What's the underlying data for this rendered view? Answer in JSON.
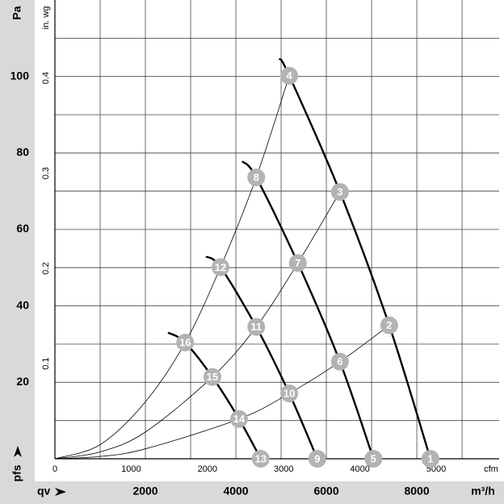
{
  "chart_data": {
    "type": "fan-performance",
    "x_label": "m³/h",
    "x2_label": "cfm",
    "y_label": "Pa",
    "y2_label": "in. wg",
    "x_symbol": "qv",
    "y_symbol": "pfs",
    "xlim": [
      0,
      9820
    ],
    "xticks": [
      2000,
      4000,
      6000,
      8000
    ],
    "x_grid": [
      1000,
      2000,
      3000,
      4000,
      5000,
      6000,
      7000,
      8000,
      9000
    ],
    "x2lim": [
      0,
      5826
    ],
    "x2ticks": [
      0,
      1000,
      2000,
      3000,
      4000,
      5000
    ],
    "ylim": [
      0,
      120
    ],
    "yticks": [
      20,
      40,
      60,
      80,
      100
    ],
    "y_grid": [
      10,
      20,
      30,
      40,
      50,
      60,
      70,
      80,
      90,
      100,
      110
    ],
    "y2lim": [
      0,
      0.482
    ],
    "y2ticks": [
      0.1,
      0.2,
      0.3,
      0.4
    ],
    "grid": true,
    "fan_curves": [
      {
        "x": [
          4960,
          5180,
          6300,
          7390,
          8300
        ],
        "y": [
          104.7,
          100.2,
          69.8,
          34.9,
          0
        ]
      },
      {
        "x": [
          4140,
          4450,
          5370,
          6300,
          7040
        ],
        "y": [
          77.8,
          73.6,
          51.2,
          25.4,
          0
        ]
      },
      {
        "x": [
          3340,
          3660,
          4450,
          5180,
          5800
        ],
        "y": [
          52.9,
          50.1,
          34.5,
          17.1,
          0
        ]
      },
      {
        "x": [
          2500,
          2880,
          3480,
          4070,
          4550
        ],
        "y": [
          33,
          30.4,
          21.4,
          10.4,
          0
        ]
      }
    ],
    "system_curves": [
      {
        "x": [
          0,
          1000,
          2000,
          2880,
          3660,
          4450,
          5180
        ],
        "y": [
          0,
          3.7,
          14.9,
          30.4,
          50.1,
          73.6,
          100.2
        ]
      },
      {
        "x": [
          0,
          1000,
          2000,
          3480,
          4450,
          5370,
          6300
        ],
        "y": [
          0,
          1.8,
          7.0,
          21.4,
          34.5,
          51.2,
          69.8
        ]
      },
      {
        "x": [
          0,
          1000,
          2000,
          4070,
          5180,
          6300,
          7390
        ],
        "y": [
          0,
          0.6,
          2.6,
          10.4,
          17.1,
          25.4,
          34.9
        ]
      }
    ],
    "points": [
      {
        "label": "1",
        "x": 8300,
        "y": 0
      },
      {
        "label": "2",
        "x": 7390,
        "y": 34.9
      },
      {
        "label": "3",
        "x": 6300,
        "y": 69.8
      },
      {
        "label": "4",
        "x": 5180,
        "y": 100.2
      },
      {
        "label": "5",
        "x": 7040,
        "y": 0
      },
      {
        "label": "6",
        "x": 6300,
        "y": 25.4
      },
      {
        "label": "7",
        "x": 5370,
        "y": 51.2
      },
      {
        "label": "8",
        "x": 4450,
        "y": 73.6
      },
      {
        "label": "9",
        "x": 5800,
        "y": 0
      },
      {
        "label": "10",
        "x": 5180,
        "y": 17.1
      },
      {
        "label": "11",
        "x": 4450,
        "y": 34.5
      },
      {
        "label": "12",
        "x": 3660,
        "y": 50.1
      },
      {
        "label": "13",
        "x": 4550,
        "y": 0
      },
      {
        "label": "14",
        "x": 4070,
        "y": 10.4
      },
      {
        "label": "15",
        "x": 3480,
        "y": 21.4
      },
      {
        "label": "16",
        "x": 2880,
        "y": 30.4
      }
    ]
  }
}
